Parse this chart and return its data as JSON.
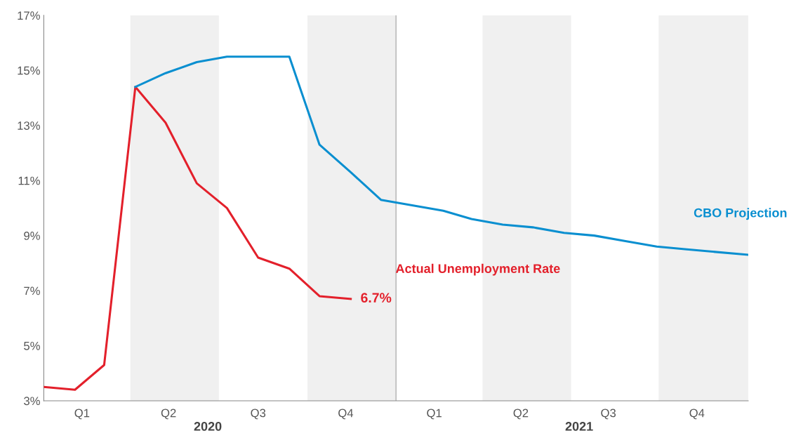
{
  "chart_data": {
    "type": "line",
    "xlim": [
      "2020-01",
      "2021-12"
    ],
    "xticks": [
      {
        "value": "2020-02-08",
        "label": "Q1"
      },
      {
        "value": "2020-05-04",
        "label": "Q2"
      },
      {
        "value": "2020-08-01",
        "label": "Q3"
      },
      {
        "value": "2020-10-27",
        "label": "Q4"
      },
      {
        "value": "2021-01-23",
        "label": "Q1"
      },
      {
        "value": "2021-04-19",
        "label": "Q2"
      },
      {
        "value": "2021-07-15",
        "label": "Q3"
      },
      {
        "value": "2021-10-11",
        "label": "Q4"
      }
    ],
    "x2lim": [
      "2020-01",
      "2021-12"
    ],
    "x2ticks": [
      {
        "value": "2020-06-12",
        "label": "2020"
      },
      {
        "value": "2021-06-16",
        "label": "2021"
      }
    ],
    "ylim": [
      3,
      17
    ],
    "yticks": [
      {
        "value": 3,
        "label": "3%"
      },
      {
        "value": 5,
        "label": "5%"
      },
      {
        "value": 7,
        "label": "7%"
      },
      {
        "value": 9,
        "label": "9%"
      },
      {
        "value": 11,
        "label": "11%"
      },
      {
        "value": 13,
        "label": "13%"
      },
      {
        "value": 15,
        "label": "15%"
      },
      {
        "value": 17,
        "label": "17%"
      }
    ],
    "grid": false,
    "series": [
      {
        "name": "Actual Unemployment Rate",
        "color": "#e3202b",
        "x": [
          "2020-01",
          "2020-02",
          "2020-03",
          "2020-04",
          "2020-05",
          "2020-06",
          "2020-07",
          "2020-08",
          "2020-09",
          "2020-10",
          "2020-11"
        ],
        "values": [
          3.5,
          3.4,
          4.3,
          14.4,
          13.1,
          10.9,
          10.0,
          8.2,
          7.8,
          6.8,
          6.7
        ],
        "value_labels": [
          null,
          null,
          null,
          null,
          null,
          null,
          null,
          null,
          null,
          null,
          "6.7%"
        ]
      },
      {
        "name": "CBO Projection",
        "color": "#0a8fd0",
        "x": [
          "2020-04",
          "2020-05",
          "2020-06",
          "2020-07",
          "2020-08",
          "2020-09",
          "2020-10",
          "2020-11",
          "2020-12",
          "2021-01",
          "2021-02",
          "2021-03",
          "2021-04",
          "2021-05",
          "2021-06",
          "2021-07",
          "2021-08",
          "2021-09",
          "2021-10",
          "2021-12"
        ],
        "values": [
          14.4,
          14.9,
          15.3,
          15.5,
          15.5,
          15.5,
          12.3,
          11.3,
          10.3,
          10.1,
          9.9,
          9.6,
          9.4,
          9.3,
          9.1,
          9.0,
          8.8,
          8.6,
          8.5,
          8.3
        ]
      }
    ],
    "bands": [
      {
        "axis": "x",
        "from": "2020-03-27",
        "to": "2020-06-23",
        "color": "#f0f0f0"
      },
      {
        "axis": "x",
        "from": "2020-09-19",
        "to": "2020-12-16",
        "color": "#f0f0f0"
      },
      {
        "axis": "x",
        "from": "2021-03-12",
        "to": "2021-06-08",
        "color": "#f0f0f0"
      },
      {
        "axis": "x",
        "from": "2021-09-03",
        "to": "2021-12-01",
        "color": "#f0f0f0"
      }
    ],
    "ref_lines": [
      {
        "axis": "x",
        "value": "2020-12-16",
        "color": "#b0b0b0"
      }
    ]
  }
}
